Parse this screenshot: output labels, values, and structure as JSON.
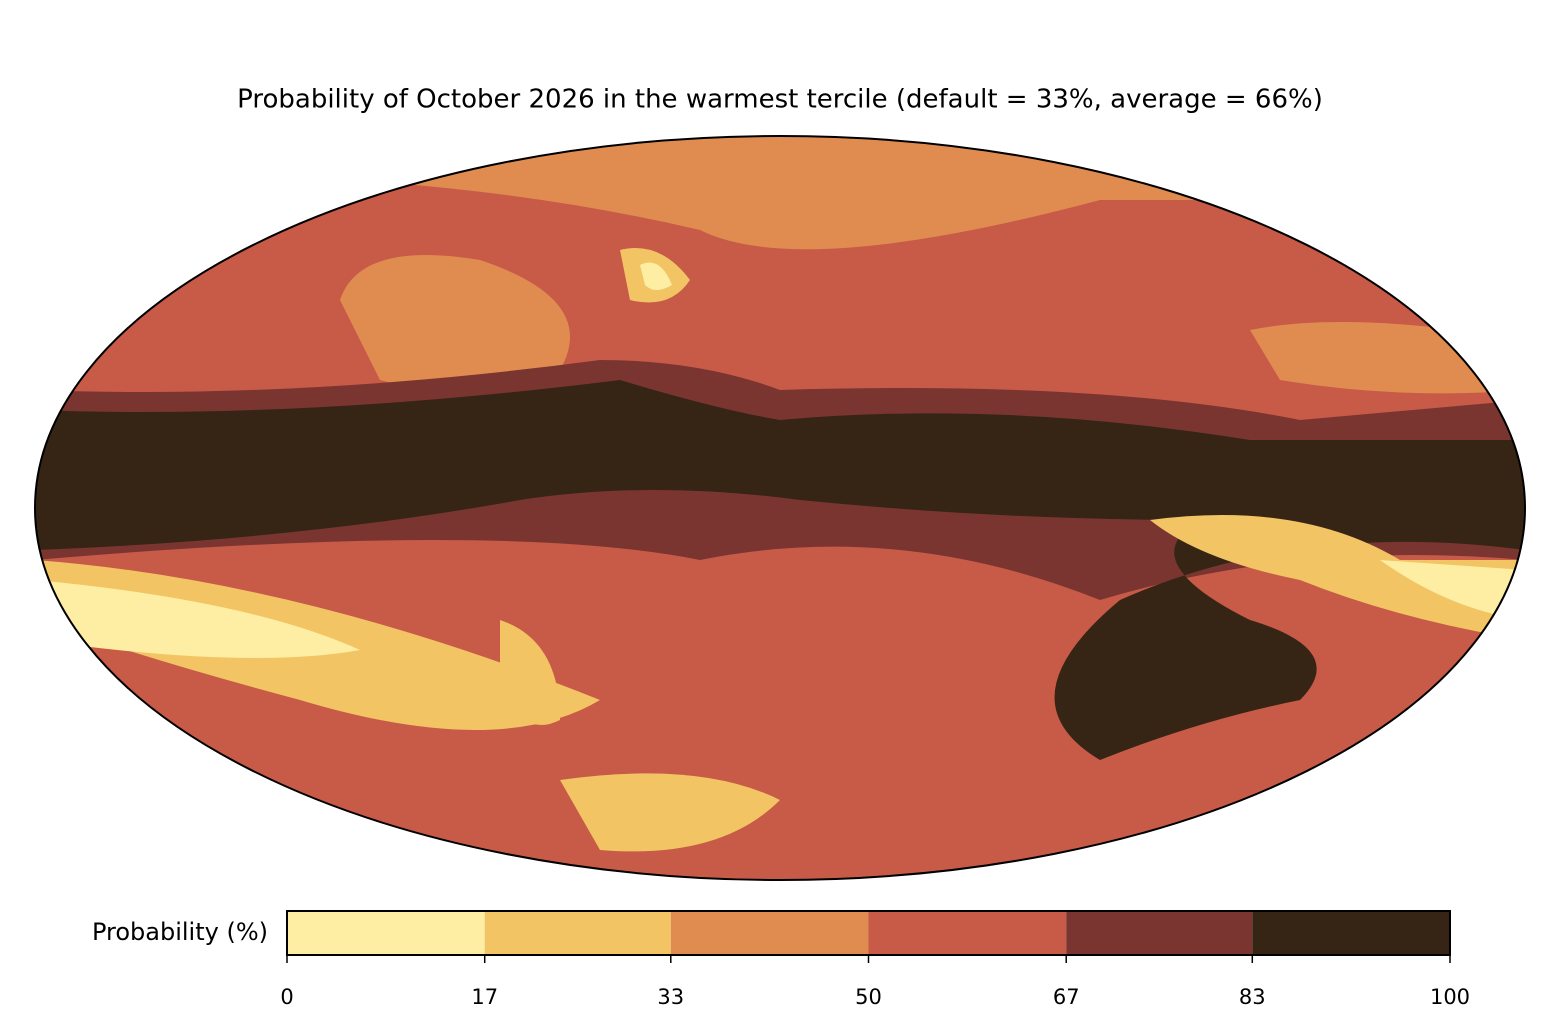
{
  "title": "Probability of October 2026 in the warmest tercile (default = 33%, average = 66%)",
  "colorbar": {
    "label": "Probability (%)",
    "ticks": [
      0,
      17,
      33,
      50,
      67,
      83,
      100
    ],
    "colors": [
      "#fdeea3",
      "#f2c464",
      "#e08c50",
      "#c85a48",
      "#7a3530",
      "#362515"
    ]
  }
}
